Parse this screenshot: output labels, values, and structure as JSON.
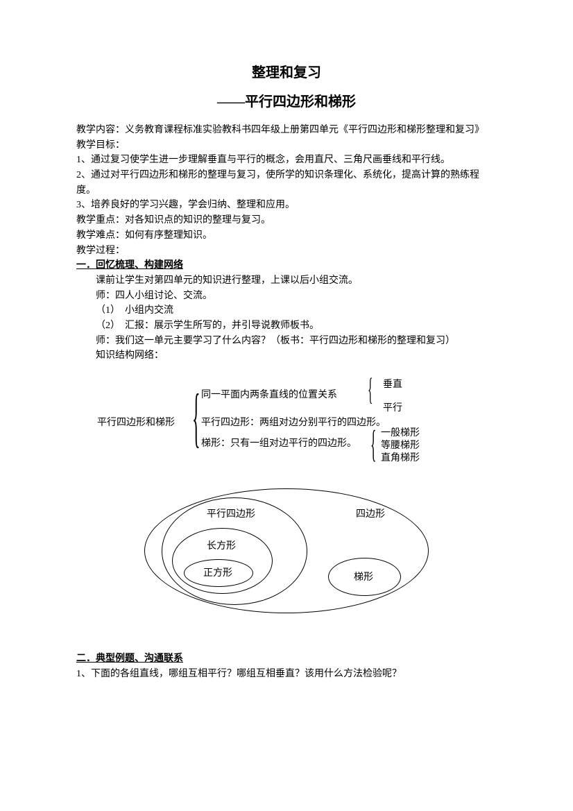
{
  "title_main": "整理和复习",
  "title_sub": "——平行四边形和梯形",
  "content_label": "教学内容：义务教育课程标准实验教科书四年级上册第四单元《平行四边形和梯形整理和复习》",
  "goals_label": "教学目标：",
  "goal_1": "1、通过复习使学生进一步理解垂直与平行的概念，会用直尺、三角尺画垂线和平行线。",
  "goal_2": "2、通过对平行四边形和梯形的整理与复习，使所学的知识条理化、系统化，提高计算的熟练程度。",
  "goal_3": "3、培养良好的学习兴趣，学会归纳、整理和应用。",
  "key_point": "教学重点：对各知识点的知识的整理与复习。",
  "difficult_point": "教学难点：如何有序整理知识。",
  "process_label": "教学过程：",
  "section1_heading": "一．回忆梳理、构建网络",
  "section1_line1": "课前让学生对第四单元的知识进行整理，上课以后小组交流。",
  "section1_line2": "师：四人小组讨论、交流。",
  "section1_line3": "（1）　小组内交流",
  "section1_line4": "（2）　汇报：展示学生所写的，并引导说教师板书。",
  "section1_line5": "师：我们这一单元主要学习了什么内容？（板书：平行四边形和梯形的整理和复习）",
  "section1_line6": "知识结构网络：",
  "tree": {
    "root": "平行四边形和梯形",
    "branch1": "同一平面内两条直线的位置关系",
    "leaf_vert": "垂直",
    "leaf_parallel": "平行",
    "branch2": "平行四边形：两组对边分别平行的四边形。",
    "branch3": "梯形：只有一组对边平行的四边形。",
    "trap1": "一般梯形",
    "trap2": "等腰梯形",
    "trap3": "直角梯形"
  },
  "venn": {
    "quad": "四边形",
    "parallel": "平行四边形",
    "rect": "长方形",
    "square": "正方形",
    "trap": "梯形"
  },
  "section2_heading": "二．典型例题、沟通联系",
  "section2_q1": "1、下面的各组直线，哪组互相平行？哪组互相垂直？该用什么方法检验呢？",
  "colors": {
    "text": "#000000",
    "background": "#ffffff",
    "border": "#000000"
  }
}
